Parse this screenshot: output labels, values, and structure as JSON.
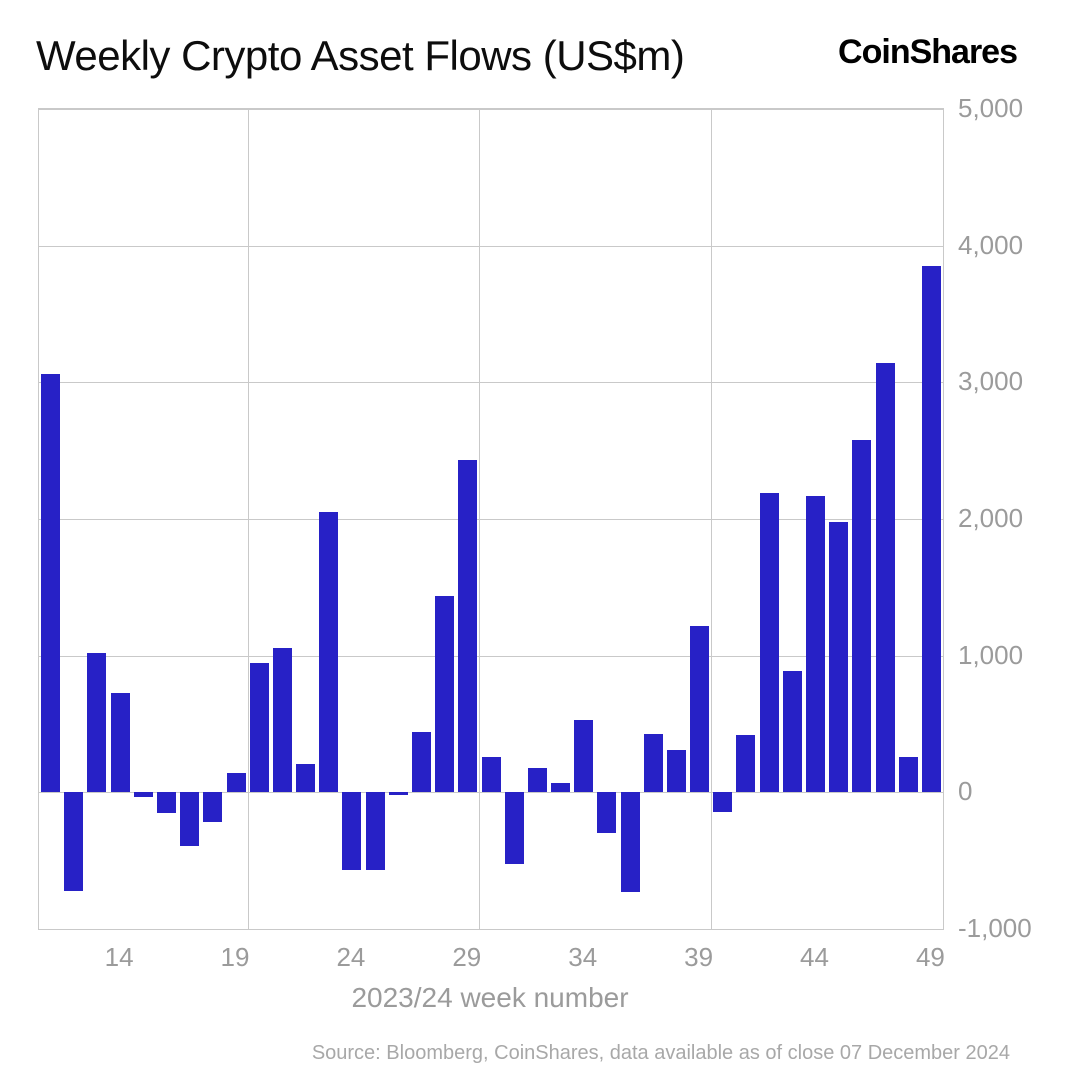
{
  "header": {
    "title": "Weekly Crypto Asset Flows (US$m)",
    "brand": "CoinShares"
  },
  "footer": {
    "source": "Source: Bloomberg, CoinShares, data available as of close 07 December 2024"
  },
  "chart_data": {
    "type": "bar",
    "title": "Weekly Crypto Asset Flows (US$m)",
    "xlabel": "2023/24 week number",
    "ylabel": "",
    "x": [
      11,
      12,
      13,
      14,
      15,
      16,
      17,
      18,
      19,
      20,
      21,
      22,
      23,
      24,
      25,
      26,
      27,
      28,
      29,
      30,
      31,
      32,
      33,
      34,
      35,
      36,
      37,
      38,
      39,
      40,
      41,
      42,
      43,
      44,
      45,
      46,
      47,
      48,
      49
    ],
    "values": [
      3060,
      -725,
      1020,
      730,
      -35,
      -150,
      -395,
      -220,
      140,
      945,
      1055,
      210,
      2050,
      -570,
      -570,
      -20,
      440,
      1440,
      2435,
      255,
      -525,
      175,
      65,
      530,
      -300,
      -730,
      430,
      310,
      1215,
      -145,
      420,
      2190,
      890,
      2170,
      1975,
      2575,
      3140,
      255,
      3850
    ],
    "ylim": [
      -1000,
      5000
    ],
    "yticks": [
      5000,
      4000,
      3000,
      2000,
      1000,
      0,
      -1000
    ],
    "ytick_labels": [
      "5,000",
      "4,000",
      "3,000",
      "2,000",
      "1,000",
      "0",
      "-1,000"
    ],
    "xticks": [
      14,
      19,
      24,
      29,
      34,
      39,
      44,
      49
    ],
    "vgrid_weeks": [
      19,
      29,
      39
    ],
    "grid": true,
    "legend_position": "none",
    "bar_color": "#2721c6",
    "grid_color": "#c9c9c9",
    "tick_label_color": "#9b9b9b",
    "source": "Source: Bloomberg, CoinShares, data available as of close 07 December 2024"
  }
}
